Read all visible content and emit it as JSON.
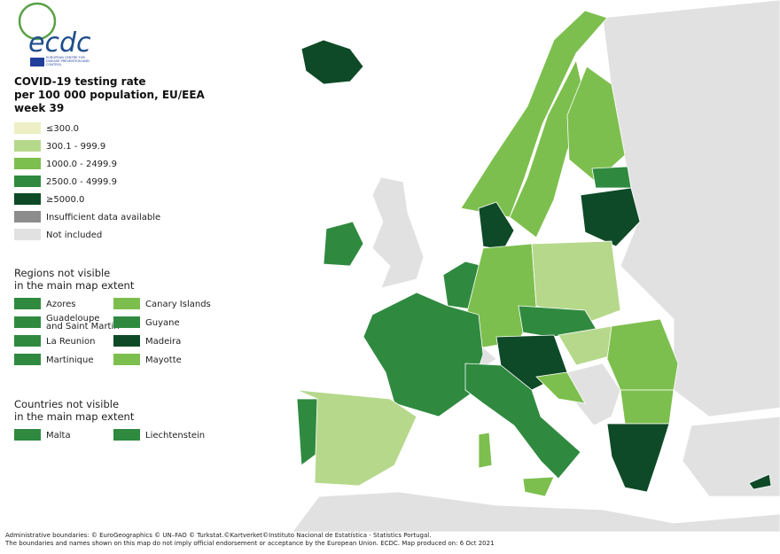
{
  "logo": {
    "name": "ecdc",
    "subtitle": "EUROPEAN CENTRE FOR DISEASE PREVENTION AND CONTROL"
  },
  "title": [
    "COVID-19 testing rate",
    "per 100 000 population, EU/EEA",
    "week 39"
  ],
  "legend": [
    {
      "label": "≤300.0",
      "color": "#edefc4"
    },
    {
      "label": "300.1 - 999.9",
      "color": "#b6d88b"
    },
    {
      "label": "1000.0 - 2499.9",
      "color": "#7dbf4e"
    },
    {
      "label": "2500.0 - 4999.9",
      "color": "#2f8a3f"
    },
    {
      "label": "≥5000.0",
      "color": "#0e4a27"
    },
    {
      "label": "Insufficient data available",
      "color": "#8c8c8c"
    },
    {
      "label": "Not included",
      "color": "#e1e1e1"
    }
  ],
  "regions": {
    "title": [
      "Regions not visible",
      "in the main map extent"
    ],
    "items": [
      {
        "label": "Azores",
        "color": "#2f8a3f"
      },
      {
        "label": "Canary Islands",
        "color": "#7dbf4e"
      },
      {
        "label": "Guadeloupe and Saint Martin",
        "color": "#2f8a3f"
      },
      {
        "label": "Guyane",
        "color": "#2f8a3f"
      },
      {
        "label": "La Reunion",
        "color": "#2f8a3f"
      },
      {
        "label": "Madeira",
        "color": "#0e4a27"
      },
      {
        "label": "Martinique",
        "color": "#2f8a3f"
      },
      {
        "label": "Mayotte",
        "color": "#7dbf4e"
      }
    ]
  },
  "countries": {
    "title": [
      "Countries not visible",
      "in the main map extent"
    ],
    "items": [
      {
        "label": "Malta",
        "color": "#2f8a3f"
      },
      {
        "label": "Liechtenstein",
        "color": "#2f8a3f"
      }
    ]
  },
  "footer": [
    "Administrative boundaries: © EuroGeographics © UN–FAO © Turkstat.©Kartverket©Instituto Nacional de Estatística - Statistics Portugal.",
    "The boundaries and names shown on this map do not imply official endorsement or acceptance by the European Union. ECDC. Map produced on: 6 Oct 2021"
  ]
}
